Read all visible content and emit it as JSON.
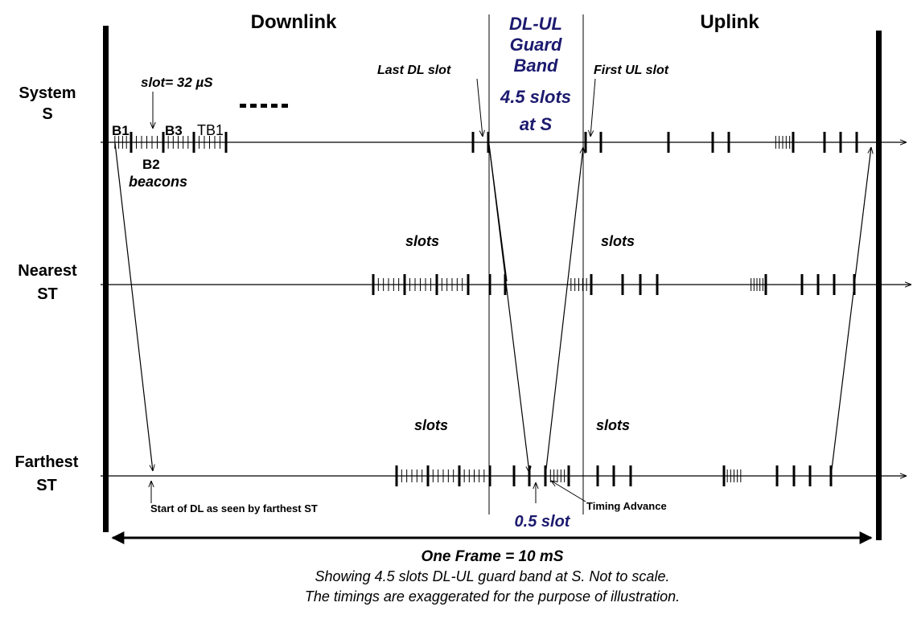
{
  "headings": {
    "downlink": "Downlink",
    "uplink": "Uplink",
    "guard_band": [
      "DL-UL",
      "Guard",
      "Band",
      "4.5 slots",
      "at S"
    ]
  },
  "rows": {
    "system": [
      "System",
      "S"
    ],
    "nearest": [
      "Nearest",
      "ST"
    ],
    "farthest": [
      "Farthest",
      "ST"
    ]
  },
  "labels": {
    "slot_size": "slot= 32 µS",
    "b1": "B1",
    "b2": "B2",
    "b3": "B3",
    "tb1": "TB1",
    "beacons": "beacons",
    "last_dl_slot": "Last DL slot",
    "first_ul_slot": "First UL slot",
    "slots": "slots",
    "start_of_dl": "Start of DL as seen by farthest ST",
    "timing_advance": "Timing Advance",
    "half_slot": "0.5 slot"
  },
  "footer": {
    "frame": "One Frame = 10 mS",
    "note_1": "Showing 4.5 slots DL-UL guard band at S. Not to scale.",
    "note_2": "The timings are exaggerated for the purpose of illustration."
  },
  "colors": {
    "accent": "#1c1a6e",
    "ink": "#000000"
  }
}
